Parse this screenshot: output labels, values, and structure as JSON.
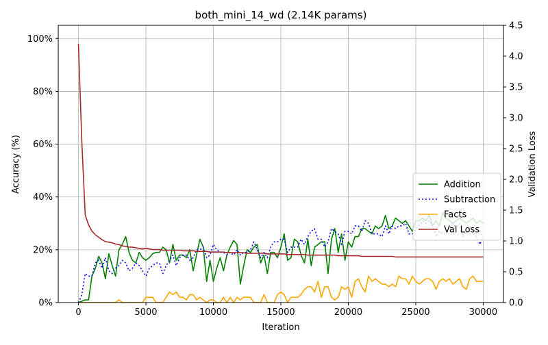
{
  "chart_data": {
    "type": "line",
    "title": "both_mini_14_wd (2.14K params)",
    "xlabel": "Iteration",
    "ylabel_left": "Accuracy (%)",
    "ylabel_right": "Validation Loss",
    "xlim": [
      -1500,
      31500
    ],
    "ylim_left": [
      0,
      105
    ],
    "ylim_right": [
      0,
      4.5
    ],
    "x_ticks": [
      0,
      5000,
      10000,
      15000,
      20000,
      25000,
      30000
    ],
    "x_tick_labels": [
      "0",
      "5000",
      "10000",
      "15000",
      "20000",
      "25000",
      "30000"
    ],
    "y_left_ticks": [
      0,
      20,
      40,
      60,
      80,
      100
    ],
    "y_left_tick_labels": [
      "0%",
      "20%",
      "40%",
      "60%",
      "80%",
      "100%"
    ],
    "y_right_ticks": [
      0,
      0.5,
      1.0,
      1.5,
      2.0,
      2.5,
      3.0,
      3.5,
      4.0,
      4.5
    ],
    "y_right_tick_labels": [
      "0.0",
      "0.5",
      "1.0",
      "1.5",
      "2.0",
      "2.5",
      "3.0",
      "3.5",
      "4.0",
      "4.5"
    ],
    "grid": true,
    "legend_position": "right-lower",
    "x": [
      0,
      250,
      500,
      750,
      1000,
      1250,
      1500,
      1750,
      2000,
      2250,
      2500,
      2750,
      3000,
      3250,
      3500,
      3750,
      4000,
      4250,
      4500,
      4750,
      5000,
      5250,
      5500,
      5750,
      6000,
      6250,
      6500,
      6750,
      7000,
      7250,
      7500,
      7750,
      8000,
      8250,
      8500,
      8750,
      9000,
      9250,
      9500,
      9750,
      10000,
      10250,
      10500,
      10750,
      11000,
      11250,
      11500,
      11750,
      12000,
      12250,
      12500,
      12750,
      13000,
      13250,
      13500,
      13750,
      14000,
      14250,
      14500,
      14750,
      15000,
      15250,
      15500,
      15750,
      16000,
      16250,
      16500,
      16750,
      17000,
      17250,
      17500,
      17750,
      18000,
      18250,
      18500,
      18750,
      19000,
      19250,
      19500,
      19750,
      20000,
      20250,
      20500,
      20750,
      21000,
      21250,
      21500,
      21750,
      22000,
      22250,
      22500,
      22750,
      23000,
      23250,
      23500,
      23750,
      24000,
      24250,
      24500,
      24750,
      25000,
      25250,
      25500,
      25750,
      26000,
      26250,
      26500,
      26750,
      27000,
      27250,
      27500,
      27750,
      28000,
      28250,
      28500,
      28750,
      29000,
      29250,
      29500,
      29750,
      30000
    ],
    "series": [
      {
        "name": "Addition",
        "axis": "left",
        "color": "#008000",
        "dash": "solid",
        "values": [
          0,
          0.5,
          1,
          1,
          10,
          13,
          17.5,
          15,
          9,
          18.5,
          14,
          10,
          20,
          22,
          25,
          19,
          16,
          15,
          19,
          17,
          16,
          17,
          18.5,
          19,
          19,
          21,
          20,
          15,
          22,
          16,
          18,
          18,
          17,
          20,
          12,
          18,
          24,
          21,
          8,
          16,
          8,
          13,
          17,
          12,
          18,
          21,
          23.5,
          22,
          7,
          14,
          20,
          19,
          21,
          22,
          15,
          18,
          11,
          19,
          19,
          17,
          21,
          26,
          16,
          17,
          24,
          23,
          18,
          15,
          24,
          14,
          21,
          22,
          23,
          23,
          11,
          24,
          28,
          19,
          26,
          16,
          23,
          21,
          25,
          25,
          28,
          28,
          27,
          26,
          29,
          28,
          29,
          33,
          28,
          29,
          32,
          31,
          30,
          31,
          29,
          27,
          31,
          31,
          32,
          31,
          33,
          29,
          31,
          29,
          34,
          32,
          31,
          30,
          31,
          32,
          31,
          30,
          31,
          32,
          30,
          31,
          30
        ]
      },
      {
        "name": "Subtraction",
        "axis": "left",
        "color": "#0000ff",
        "dash": "dotted",
        "values": [
          0,
          3,
          11,
          10,
          10,
          15,
          16,
          13,
          17,
          12,
          11,
          13,
          14,
          16,
          15,
          12,
          13,
          15,
          14,
          12,
          10,
          13,
          14,
          15,
          15,
          11,
          14,
          16,
          18,
          14,
          17,
          18,
          18,
          16,
          17,
          20,
          20,
          21,
          17,
          18,
          22,
          20,
          19,
          19,
          18,
          19,
          18,
          20,
          18,
          19,
          19,
          20,
          23,
          20,
          17,
          19,
          17,
          21,
          23,
          23,
          24,
          24,
          19,
          21,
          21,
          21,
          24,
          22,
          25,
          27,
          28,
          24,
          24,
          21,
          23,
          28,
          27,
          26,
          22,
          27,
          27,
          26,
          29,
          29,
          27,
          31,
          30,
          26,
          26,
          26,
          25,
          29,
          26,
          29,
          28,
          29,
          29,
          30,
          26,
          26,
          28,
          29,
          31,
          30,
          31,
          29,
          25,
          27,
          26,
          26,
          29,
          30,
          28,
          30,
          25,
          27,
          26,
          27,
          25,
          22,
          25
        ]
      },
      {
        "name": "Facts",
        "axis": "left",
        "color": "#ffa500",
        "dash": "solid",
        "values": [
          0,
          0,
          0,
          0,
          0,
          0,
          0,
          0,
          0,
          0,
          0,
          0,
          1,
          0,
          0,
          0,
          0,
          0,
          0,
          0,
          2,
          2,
          2,
          0,
          0,
          0,
          2,
          4,
          3,
          4,
          2,
          2,
          1,
          3,
          3,
          1,
          2,
          1,
          0,
          1,
          1,
          0,
          0,
          2,
          0,
          2,
          0,
          2,
          1,
          2,
          2,
          2,
          0,
          0,
          0,
          3,
          0,
          0,
          0,
          3,
          4,
          3,
          0,
          2,
          2,
          2,
          3,
          5,
          6,
          6,
          4,
          8,
          2,
          6,
          6,
          2,
          1,
          2,
          6,
          5,
          6,
          2,
          8,
          9,
          6,
          4,
          10,
          8,
          9,
          8,
          7,
          7,
          6,
          7,
          6,
          10,
          9,
          9,
          7,
          10,
          8,
          7,
          8,
          9,
          9,
          8,
          5,
          8,
          9,
          8,
          9,
          7,
          8,
          9,
          6,
          5,
          9,
          10,
          8,
          8,
          8
        ]
      },
      {
        "name": "Val Loss",
        "axis": "right",
        "color": "#a52a2a",
        "dash": "solid",
        "values": [
          4.2,
          2.6,
          1.42,
          1.26,
          1.16,
          1.1,
          1.06,
          1.02,
          0.99,
          0.98,
          0.97,
          0.95,
          0.94,
          0.92,
          0.91,
          0.9,
          0.9,
          0.89,
          0.88,
          0.87,
          0.88,
          0.87,
          0.86,
          0.86,
          0.86,
          0.85,
          0.85,
          0.85,
          0.85,
          0.85,
          0.85,
          0.84,
          0.84,
          0.84,
          0.84,
          0.83,
          0.83,
          0.83,
          0.83,
          0.82,
          0.82,
          0.82,
          0.82,
          0.82,
          0.81,
          0.81,
          0.81,
          0.81,
          0.81,
          0.81,
          0.8,
          0.8,
          0.8,
          0.8,
          0.8,
          0.8,
          0.79,
          0.79,
          0.79,
          0.79,
          0.79,
          0.79,
          0.78,
          0.78,
          0.78,
          0.78,
          0.78,
          0.78,
          0.77,
          0.77,
          0.77,
          0.77,
          0.77,
          0.77,
          0.77,
          0.77,
          0.77,
          0.76,
          0.76,
          0.76,
          0.76,
          0.76,
          0.76,
          0.76,
          0.75,
          0.75,
          0.75,
          0.75,
          0.75,
          0.75,
          0.75,
          0.75,
          0.75,
          0.75,
          0.74,
          0.74,
          0.74,
          0.74,
          0.74,
          0.74,
          0.74,
          0.74,
          0.74,
          0.74,
          0.74,
          0.74,
          0.74,
          0.74,
          0.74,
          0.74,
          0.74,
          0.74,
          0.74,
          0.74,
          0.74,
          0.74,
          0.74,
          0.74,
          0.74,
          0.74,
          0.74
        ]
      }
    ]
  }
}
